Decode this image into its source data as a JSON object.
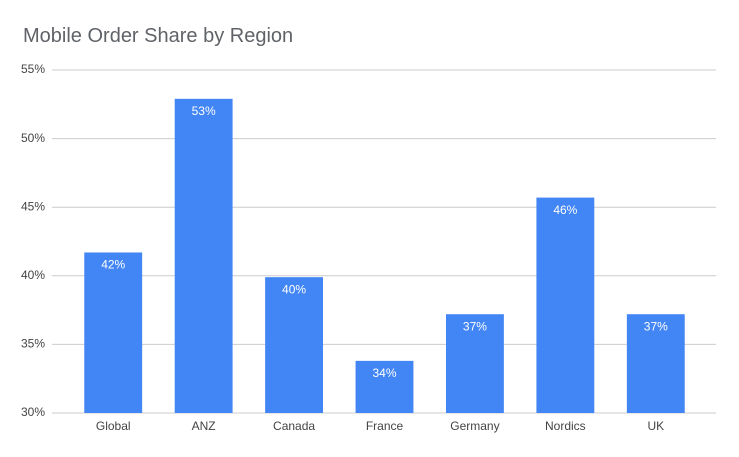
{
  "chart_data": {
    "type": "bar",
    "title": "Mobile Order Share by Region",
    "categories": [
      "Global",
      "ANZ",
      "Canada",
      "France",
      "Germany",
      "Nordics",
      "UK"
    ],
    "values": [
      41.7,
      52.9,
      39.9,
      33.8,
      37.2,
      45.7,
      37.2
    ],
    "value_labels": [
      "42%",
      "53%",
      "40%",
      "34%",
      "37%",
      "46%",
      "37%"
    ],
    "color": "#4285f4",
    "ylim": [
      30,
      55
    ],
    "yticks": [
      {
        "value": 30,
        "label": "30%"
      },
      {
        "value": 35,
        "label": "35%"
      },
      {
        "value": 40,
        "label": "40%"
      },
      {
        "value": 45,
        "label": "45%"
      },
      {
        "value": 50,
        "label": "50%"
      },
      {
        "value": 55,
        "label": "55%"
      }
    ],
    "grid": true
  }
}
